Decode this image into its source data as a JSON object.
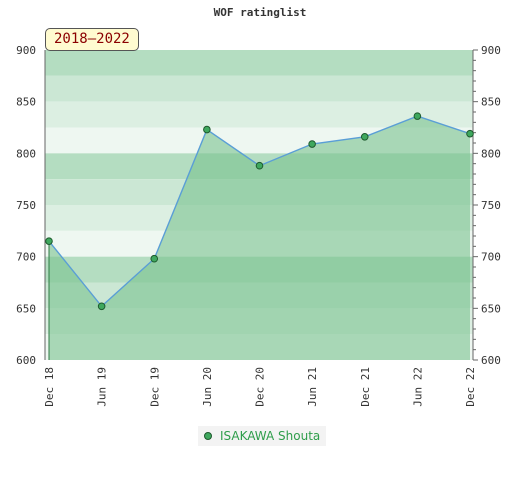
{
  "title": "WOF ratinglist",
  "period_label": "2018–2022",
  "colors": {
    "line": "#5a9ed6",
    "fill": "#7cc392",
    "marker": "#3fa85e",
    "marker_stroke": "#1d5a2d",
    "band_dark": "#b4ddc1",
    "band_mid": "#cbe7d4",
    "band_light": "#dcefe2",
    "band_lightest": "#eef7f1"
  },
  "chart_data": {
    "type": "area",
    "title": "WOF ratinglist",
    "x": [
      "Dec 18",
      "Jun 19",
      "Dec 19",
      "Jun 20",
      "Dec 20",
      "Jun 21",
      "Dec 21",
      "Jun 22",
      "Dec 22"
    ],
    "series": [
      {
        "name": "ISAKAWA Shouta",
        "values": [
          715,
          652,
          698,
          823,
          788,
          809,
          816,
          836,
          819
        ]
      }
    ],
    "ylim": [
      600,
      900
    ],
    "yticks": [
      600,
      650,
      700,
      750,
      800,
      850,
      900
    ],
    "grid": false,
    "legend": "bottom-center"
  }
}
